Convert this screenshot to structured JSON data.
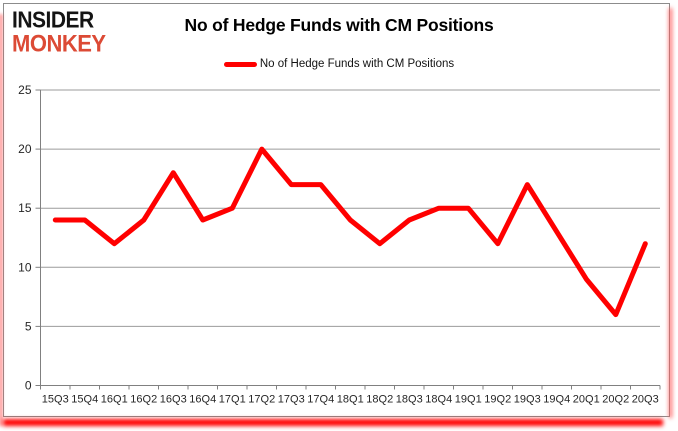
{
  "logo": {
    "line1": "INSIDER",
    "line2": "MONKEY"
  },
  "header": {
    "title": "No of Hedge Funds with CM Positions"
  },
  "legend": {
    "label": "No of Hedge Funds with CM Positions"
  },
  "colors": {
    "series_line": "#FF0000",
    "logo_insider": "#141414",
    "logo_monkey": "#DC4A35",
    "gridline": "#9B9B9B",
    "axis": "#808080",
    "tick_text": "#262626",
    "title_text": "#000000",
    "border": "#8C8C8C",
    "glow": "#FF0000"
  },
  "chart_data": {
    "type": "line",
    "title": "No of Hedge Funds with CM Positions",
    "categories": [
      "15Q3",
      "15Q4",
      "16Q1",
      "16Q2",
      "16Q3",
      "16Q4",
      "17Q1",
      "17Q2",
      "17Q3",
      "17Q4",
      "18Q1",
      "18Q2",
      "18Q3",
      "18Q4",
      "19Q1",
      "19Q2",
      "19Q3",
      "19Q4",
      "20Q1",
      "20Q2",
      "20Q3"
    ],
    "series": [
      {
        "name": "No of Hedge Funds with CM Positions",
        "color": "#FF0000",
        "values": [
          14,
          14,
          12,
          14,
          18,
          14,
          15,
          20,
          17,
          17,
          14,
          12,
          14,
          15,
          15,
          12,
          17,
          13,
          9,
          6,
          12
        ]
      }
    ],
    "xlabel": "",
    "ylabel": "",
    "ylim": [
      0,
      25
    ],
    "yticks": [
      0,
      5,
      10,
      15,
      20,
      25
    ],
    "grid": "horizontal",
    "legend_position": "top-center"
  }
}
